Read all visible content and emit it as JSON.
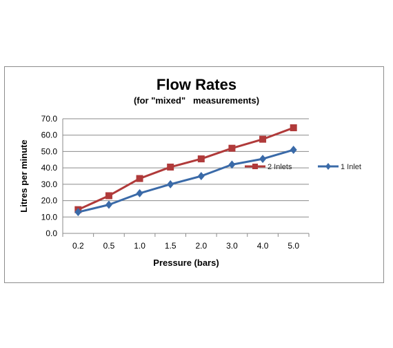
{
  "chart_data": {
    "type": "line",
    "title": "Flow Rates",
    "subtitle": "(for \"mixed\"   measurements)",
    "xlabel": "Pressure (bars)",
    "ylabel": "Litres per minute",
    "categories": [
      "0.2",
      "0.5",
      "1.0",
      "1.5",
      "2.0",
      "3.0",
      "4.0",
      "5.0"
    ],
    "ylim": [
      0,
      70
    ],
    "yticks": [
      "0.0",
      "10.0",
      "20.0",
      "30.0",
      "40.0",
      "50.0",
      "60.0",
      "70.0"
    ],
    "grid": true,
    "legend_position": "right",
    "series": [
      {
        "name": "2 Inlets",
        "color": "#b03a3a",
        "marker": "square",
        "values": [
          14.5,
          23,
          33.5,
          40.5,
          45.5,
          52,
          57.5,
          64.5
        ]
      },
      {
        "name": "1 Inlet",
        "color": "#3a6aa8",
        "marker": "diamond",
        "values": [
          13,
          17.5,
          24.5,
          30,
          35,
          42,
          45.5,
          51
        ]
      }
    ]
  }
}
